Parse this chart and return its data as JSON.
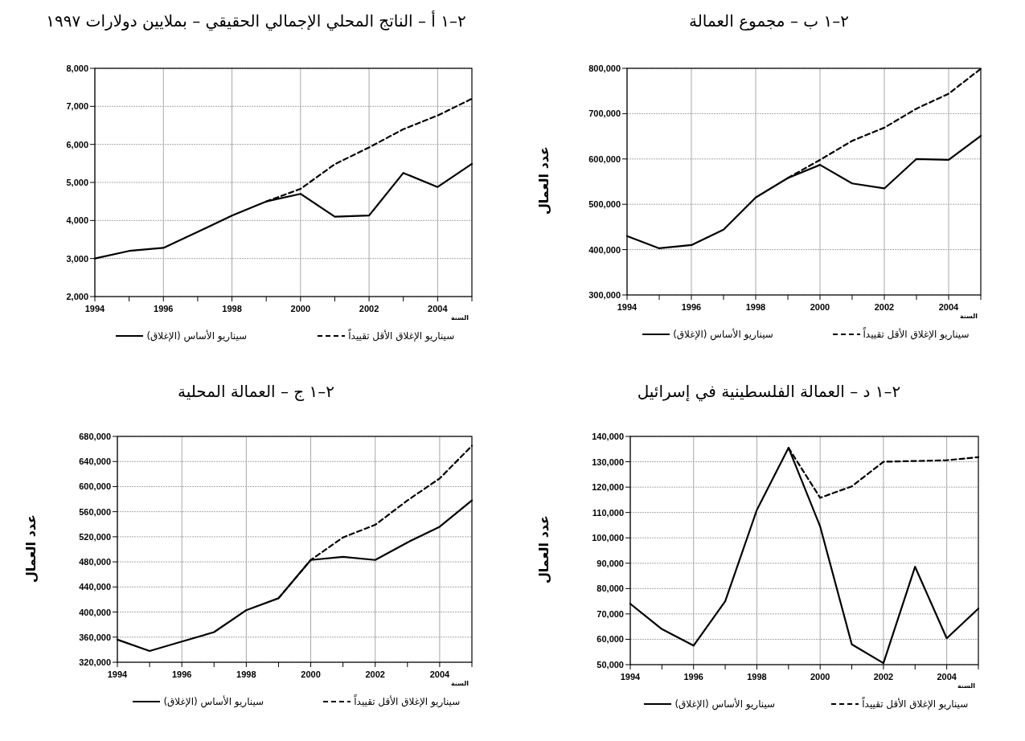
{
  "chart_data": [
    {
      "type": "line",
      "title": "٢–١ أ – الناتج المحلي الإجمالي الحقيقي – بملايين دولارات ١٩٩٧",
      "xlabel": "السنة",
      "x": [
        1994,
        1995,
        1996,
        1997,
        1998,
        1999,
        2000,
        2001,
        2002,
        2003,
        2004,
        2005
      ],
      "series": [
        {
          "name": "سيناريو الأساس (الإغلاق)",
          "color": "#000000",
          "line_style": "solid",
          "values": [
            3000,
            3200,
            3280,
            3700,
            4130,
            4500,
            4700,
            4100,
            4130,
            5250,
            4880,
            5490
          ]
        },
        {
          "name": "سيناريو الإغلاق الأقل تقييداً",
          "color": "#000000",
          "line_style": "dashed",
          "values": [
            null,
            null,
            null,
            null,
            null,
            4500,
            4830,
            5480,
            5920,
            6400,
            6760,
            7200
          ]
        }
      ],
      "xlim": [
        1994,
        2005
      ],
      "xticks": [
        1994,
        {
          "value": 1995,
          "label": null
        },
        1996,
        {
          "value": 1997,
          "label": null
        },
        1998,
        {
          "value": 1999,
          "label": null
        },
        2000,
        {
          "value": 2001,
          "label": null
        },
        2002,
        {
          "value": 2003,
          "label": null
        },
        2004,
        {
          "value": 2005,
          "label": null
        }
      ],
      "ylim": [
        2000,
        8000
      ],
      "yticks": [
        {
          "value": 2000,
          "label": "2,000"
        },
        {
          "value": 3000,
          "label": "3,000"
        },
        {
          "value": 4000,
          "label": "4,000"
        },
        {
          "value": 5000,
          "label": "5,000"
        },
        {
          "value": 6000,
          "label": "6,000"
        },
        {
          "value": 7000,
          "label": "7,000"
        },
        {
          "value": 8000,
          "label": "8,000"
        }
      ],
      "grid": true,
      "legend": "bottom"
    },
    {
      "type": "line",
      "title": "٢–١ ب – مجموع العمالة",
      "xlabel": "السنة",
      "ylabel": "عدد العمال",
      "x": [
        1994,
        1995,
        1996,
        1997,
        1998,
        1999,
        2000,
        2001,
        2002,
        2003,
        2004,
        2005
      ],
      "series": [
        {
          "name": "سيناريو الأساس (الإغلاق)",
          "color": "#000000",
          "line_style": "solid",
          "values": [
            430000,
            403000,
            410000,
            444000,
            515000,
            558000,
            587000,
            546000,
            535000,
            600000,
            598000,
            651000
          ]
        },
        {
          "name": "سيناريو الإغلاق الأقل تقييداً",
          "color": "#000000",
          "line_style": "dashed",
          "values": [
            null,
            null,
            null,
            null,
            null,
            558000,
            598000,
            640000,
            669000,
            711000,
            744000,
            799000
          ]
        }
      ],
      "xlim": [
        1994,
        2005
      ],
      "xticks": [
        1994,
        {
          "value": 1995,
          "label": null
        },
        1996,
        {
          "value": 1997,
          "label": null
        },
        1998,
        {
          "value": 1999,
          "label": null
        },
        2000,
        {
          "value": 2001,
          "label": null
        },
        2002,
        {
          "value": 2003,
          "label": null
        },
        2004,
        {
          "value": 2005,
          "label": null
        }
      ],
      "ylim": [
        300000,
        800000
      ],
      "yticks": [
        {
          "value": 300000,
          "label": "300,000"
        },
        {
          "value": 400000,
          "label": "400,000"
        },
        {
          "value": 500000,
          "label": "500,000"
        },
        {
          "value": 600000,
          "label": "600,000"
        },
        {
          "value": 700000,
          "label": "700,000"
        },
        {
          "value": 800000,
          "label": "800,000"
        }
      ],
      "grid": true,
      "legend": "bottom"
    },
    {
      "type": "line",
      "title": "٢–١ ج – العمالة المحلية",
      "xlabel": "السنة",
      "ylabel": "عدد العمال",
      "x": [
        1994,
        1995,
        1996,
        1997,
        1998,
        1999,
        2000,
        2001,
        2002,
        2003,
        2004,
        2005
      ],
      "series": [
        {
          "name": "سيناريو الأساس (الإغلاق)",
          "color": "#000000",
          "line_style": "solid",
          "values": [
            356000,
            338000,
            353000,
            368000,
            403000,
            422000,
            483000,
            488000,
            483000,
            511000,
            536000,
            578000
          ]
        },
        {
          "name": "سيناريو الإغلاق الأقل تقييداً",
          "color": "#000000",
          "line_style": "dashed",
          "values": [
            null,
            null,
            null,
            null,
            null,
            422000,
            483000,
            519000,
            539000,
            578000,
            613000,
            665000
          ]
        }
      ],
      "xlim": [
        1994,
        2005
      ],
      "xticks": [
        1994,
        {
          "value": 1995,
          "label": null
        },
        1996,
        {
          "value": 1997,
          "label": null
        },
        1998,
        {
          "value": 1999,
          "label": null
        },
        2000,
        {
          "value": 2001,
          "label": null
        },
        2002,
        {
          "value": 2003,
          "label": null
        },
        2004,
        {
          "value": 2005,
          "label": null
        }
      ],
      "ylim": [
        320000,
        680000
      ],
      "yticks": [
        {
          "value": 320000,
          "label": "320,000"
        },
        {
          "value": 360000,
          "label": "360,000"
        },
        {
          "value": 400000,
          "label": "400,000"
        },
        {
          "value": 440000,
          "label": "440,000"
        },
        {
          "value": 480000,
          "label": "480,000"
        },
        {
          "value": 520000,
          "label": "520,000"
        },
        {
          "value": 560000,
          "label": "560,000"
        },
        {
          "value": 600000,
          "label": "600,000"
        },
        {
          "value": 640000,
          "label": "640,000"
        },
        {
          "value": 680000,
          "label": "680,000"
        }
      ],
      "grid": true,
      "legend": "bottom"
    },
    {
      "type": "line",
      "title": "٢–١ د – العمالة الفلسطينية في إسرائيل",
      "xlabel": "السنة",
      "ylabel": "عدد العمال",
      "x": [
        1994,
        1995,
        1996,
        1997,
        1998,
        1999,
        2000,
        2001,
        2002,
        2003,
        2004,
        2005
      ],
      "series": [
        {
          "name": "سيناريو الأساس (الإغلاق)",
          "color": "#000000",
          "line_style": "solid",
          "values": [
            74000,
            64000,
            57500,
            75000,
            111000,
            135500,
            104500,
            58000,
            50600,
            88600,
            60400,
            72100
          ]
        },
        {
          "name": "سيناريو الإغلاق الأقل تقييداً",
          "color": "#000000",
          "line_style": "dashed",
          "values": [
            null,
            null,
            null,
            null,
            null,
            135500,
            115800,
            120300,
            130000,
            130300,
            130600,
            131800
          ]
        }
      ],
      "xlim": [
        1994,
        2005
      ],
      "xticks": [
        1994,
        {
          "value": 1995,
          "label": null
        },
        1996,
        {
          "value": 1997,
          "label": null
        },
        1998,
        {
          "value": 1999,
          "label": null
        },
        2000,
        {
          "value": 2001,
          "label": null
        },
        2002,
        {
          "value": 2003,
          "label": null
        },
        2004,
        {
          "value": 2005,
          "label": null
        }
      ],
      "ylim": [
        50000,
        140000
      ],
      "yticks": [
        {
          "value": 50000,
          "label": "50,000"
        },
        {
          "value": 60000,
          "label": "60,000"
        },
        {
          "value": 70000,
          "label": "70,000"
        },
        {
          "value": 80000,
          "label": "80,000"
        },
        {
          "value": 90000,
          "label": "90,000"
        },
        {
          "value": 100000,
          "label": "100,000"
        },
        {
          "value": 110000,
          "label": "110,000"
        },
        {
          "value": 120000,
          "label": "120,000"
        },
        {
          "value": 130000,
          "label": "130,000"
        },
        {
          "value": 140000,
          "label": "140,000"
        }
      ],
      "grid": true,
      "legend": "bottom"
    }
  ]
}
